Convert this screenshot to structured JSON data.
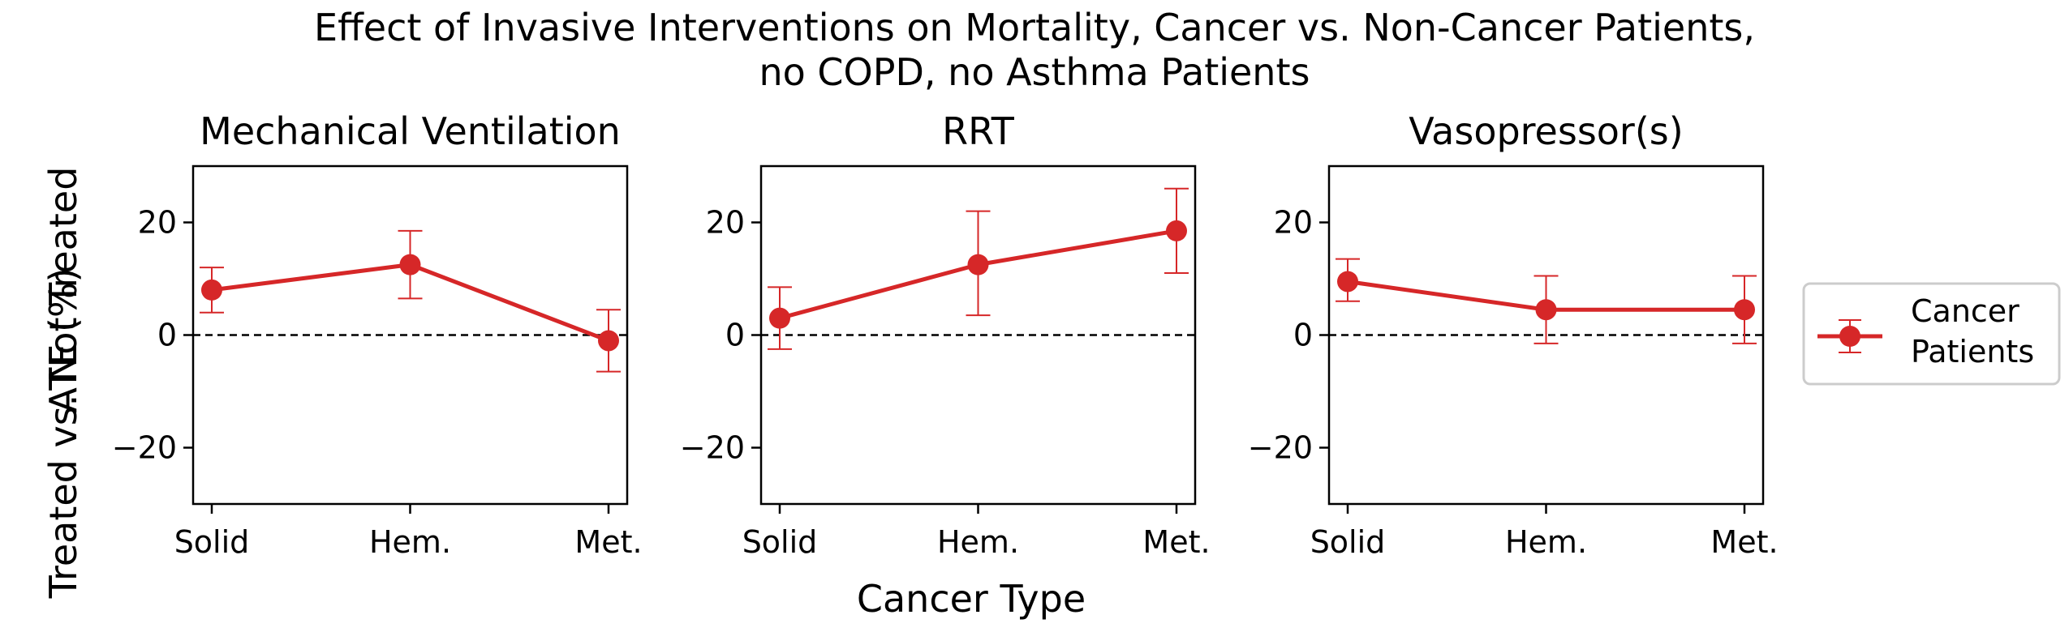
{
  "figure": {
    "title_line1": "Effect of Invasive Interventions on Mortality, Cancer vs. Non-Cancer Patients,",
    "title_line2": "no COPD, no Asthma Patients",
    "xlabel": "Cancer Type",
    "ylabel_line1": "ATE (%)",
    "ylabel_line2": "Treated vs. Not Treated",
    "legend_line1": "Cancer",
    "legend_line2": "Patients",
    "legend_position": "right",
    "series_color": "#d62728"
  },
  "chart_data": [
    {
      "type": "line",
      "title": "Mechanical Ventilation",
      "categories": [
        "Solid",
        "Hem.",
        "Met."
      ],
      "ylim": [
        -30,
        30
      ],
      "yticks": [
        20,
        0,
        -20
      ],
      "ytick_labels": [
        "20",
        "0",
        "−20"
      ],
      "reference_line": 0,
      "grid": false,
      "series": [
        {
          "name": "Cancer Patients",
          "values": [
            8,
            12.5,
            -1
          ],
          "lower": [
            4,
            6.5,
            -6.5
          ],
          "upper": [
            12,
            18.5,
            4.5
          ]
        }
      ]
    },
    {
      "type": "line",
      "title": "RRT",
      "categories": [
        "Solid",
        "Hem.",
        "Met."
      ],
      "ylim": [
        -30,
        30
      ],
      "yticks": [
        20,
        0,
        -20
      ],
      "ytick_labels": [
        "20",
        "0",
        "−20"
      ],
      "reference_line": 0,
      "grid": false,
      "series": [
        {
          "name": "Cancer Patients",
          "values": [
            3,
            12.5,
            18.5
          ],
          "lower": [
            -2.5,
            3.5,
            11
          ],
          "upper": [
            8.5,
            22,
            26
          ]
        }
      ]
    },
    {
      "type": "line",
      "title": "Vasopressor(s)",
      "categories": [
        "Solid",
        "Hem.",
        "Met."
      ],
      "ylim": [
        -30,
        30
      ],
      "yticks": [
        20,
        0,
        -20
      ],
      "ytick_labels": [
        "20",
        "0",
        "−20"
      ],
      "reference_line": 0,
      "grid": false,
      "series": [
        {
          "name": "Cancer Patients",
          "values": [
            9.5,
            4.5,
            4.5
          ],
          "lower": [
            6,
            -1.5,
            -1.5
          ],
          "upper": [
            13.5,
            10.5,
            10.5
          ]
        }
      ]
    }
  ]
}
